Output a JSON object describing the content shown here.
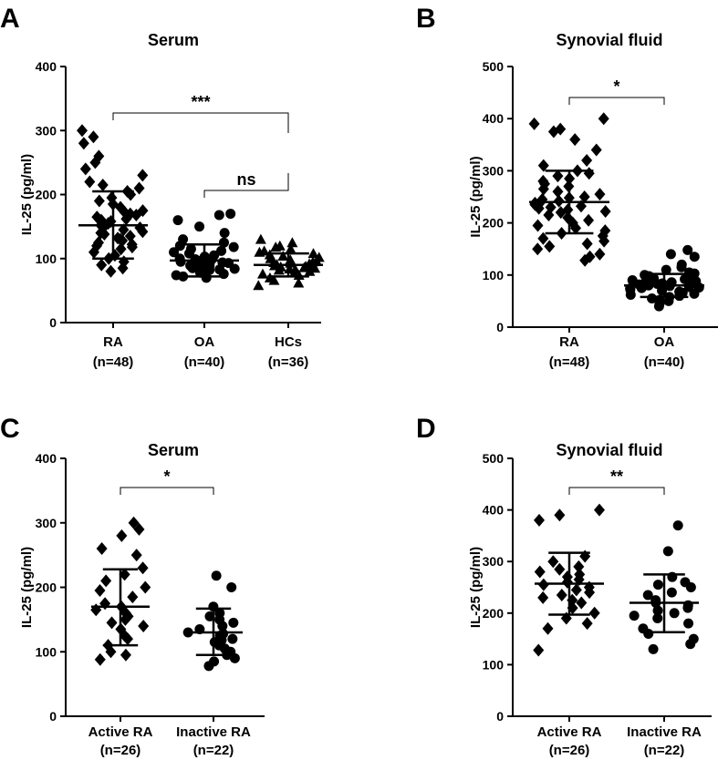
{
  "chart_data": [
    {
      "panel": "A",
      "type": "scatter",
      "title": "Serum",
      "ylabel": "IL-25 (pg/ml)",
      "xlabel": "",
      "ylim": [
        0,
        400
      ],
      "yticks": [
        0,
        100,
        200,
        300,
        400
      ],
      "grid": false,
      "groups": [
        {
          "name": "RA",
          "n": "(n=48)",
          "marker": "diamond",
          "mean": 152,
          "sd_low": 100,
          "sd_high": 205,
          "values": [
            300,
            290,
            280,
            260,
            250,
            240,
            230,
            220,
            215,
            210,
            205,
            200,
            195,
            190,
            185,
            180,
            175,
            172,
            170,
            168,
            165,
            162,
            160,
            158,
            155,
            152,
            150,
            148,
            145,
            142,
            140,
            138,
            135,
            132,
            130,
            128,
            125,
            122,
            120,
            118,
            115,
            110,
            105,
            100,
            95,
            90,
            85,
            80
          ]
        },
        {
          "name": "OA",
          "n": "(n=40)",
          "marker": "circle",
          "mean": 97,
          "sd_low": 72,
          "sd_high": 122,
          "values": [
            170,
            168,
            160,
            150,
            140,
            130,
            125,
            120,
            118,
            115,
            112,
            110,
            108,
            105,
            103,
            100,
            99,
            98,
            97,
            96,
            95,
            94,
            93,
            92,
            91,
            90,
            89,
            88,
            87,
            86,
            85,
            84,
            83,
            82,
            80,
            78,
            76,
            74,
            72,
            70
          ]
        },
        {
          "name": "HCs",
          "n": "(n=36)",
          "marker": "triangle",
          "mean": 90,
          "sd_low": 72,
          "sd_high": 108,
          "values": [
            130,
            125,
            120,
            118,
            115,
            112,
            110,
            108,
            106,
            104,
            102,
            100,
            98,
            96,
            95,
            94,
            93,
            92,
            91,
            90,
            89,
            88,
            87,
            86,
            85,
            84,
            83,
            82,
            80,
            78,
            76,
            74,
            70,
            66,
            62,
            58
          ]
        }
      ],
      "comparisons": [
        {
          "from": "RA",
          "to": "HCs",
          "label": "***"
        },
        {
          "from": "OA",
          "to": "HCs",
          "label": "ns"
        }
      ]
    },
    {
      "panel": "B",
      "type": "scatter",
      "title": "Synovial fluid",
      "ylabel": "IL-25 (pg/ml)",
      "xlabel": "",
      "ylim": [
        0,
        500
      ],
      "yticks": [
        0,
        100,
        200,
        300,
        400,
        500
      ],
      "grid": false,
      "groups": [
        {
          "name": "RA",
          "n": "(n=48)",
          "marker": "diamond",
          "mean": 240,
          "sd_low": 180,
          "sd_high": 300,
          "values": [
            400,
            390,
            380,
            375,
            360,
            340,
            320,
            310,
            300,
            295,
            290,
            285,
            280,
            275,
            270,
            265,
            260,
            255,
            250,
            248,
            245,
            242,
            240,
            238,
            235,
            232,
            230,
            228,
            225,
            222,
            220,
            215,
            210,
            205,
            200,
            195,
            190,
            185,
            180,
            175,
            170,
            165,
            160,
            155,
            150,
            140,
            135,
            128
          ]
        },
        {
          "name": "OA",
          "n": "(n=40)",
          "marker": "circle",
          "mean": 80,
          "sd_low": 58,
          "sd_high": 102,
          "values": [
            148,
            140,
            135,
            120,
            115,
            110,
            105,
            103,
            100,
            98,
            96,
            94,
            92,
            90,
            88,
            86,
            85,
            84,
            83,
            82,
            80,
            79,
            78,
            77,
            76,
            75,
            74,
            72,
            70,
            68,
            66,
            64,
            62,
            60,
            58,
            55,
            52,
            50,
            45,
            40
          ]
        }
      ],
      "comparisons": [
        {
          "from": "RA",
          "to": "OA",
          "label": "*"
        }
      ]
    },
    {
      "panel": "C",
      "type": "scatter",
      "title": "Serum",
      "ylabel": "IL-25 (pg/ml)",
      "xlabel": "",
      "ylim": [
        0,
        400
      ],
      "yticks": [
        0,
        100,
        200,
        300,
        400
      ],
      "grid": false,
      "groups": [
        {
          "name": "Active RA",
          "n": "(n=26)",
          "marker": "diamond",
          "mean": 170,
          "sd_low": 110,
          "sd_high": 228,
          "values": [
            300,
            290,
            280,
            260,
            250,
            230,
            220,
            210,
            200,
            195,
            185,
            175,
            170,
            165,
            160,
            155,
            150,
            145,
            140,
            135,
            125,
            120,
            110,
            100,
            95,
            88
          ]
        },
        {
          "name": "Inactive RA",
          "n": "(n=22)",
          "marker": "circle",
          "mean": 130,
          "sd_low": 95,
          "sd_high": 167,
          "values": [
            218,
            200,
            170,
            160,
            155,
            150,
            145,
            140,
            135,
            130,
            128,
            125,
            120,
            118,
            115,
            110,
            105,
            100,
            95,
            90,
            85,
            78
          ]
        }
      ],
      "comparisons": [
        {
          "from": "Active RA",
          "to": "Inactive RA",
          "label": "*"
        }
      ]
    },
    {
      "panel": "D",
      "type": "scatter",
      "title": "Synovial fluid",
      "ylabel": "IL-25 (pg/ml)",
      "xlabel": "",
      "ylim": [
        0,
        500
      ],
      "yticks": [
        0,
        100,
        200,
        300,
        400,
        500
      ],
      "grid": false,
      "groups": [
        {
          "name": "Active RA",
          "n": "(n=26)",
          "marker": "diamond",
          "mean": 257,
          "sd_low": 197,
          "sd_high": 317,
          "values": [
            400,
            390,
            380,
            310,
            300,
            290,
            285,
            280,
            275,
            270,
            265,
            260,
            255,
            250,
            245,
            240,
            235,
            230,
            225,
            220,
            210,
            200,
            190,
            180,
            170,
            128
          ]
        },
        {
          "name": "Inactive RA",
          "n": "(n=22)",
          "marker": "circle",
          "mean": 220,
          "sd_low": 163,
          "sd_high": 275,
          "values": [
            370,
            320,
            270,
            260,
            255,
            250,
            240,
            235,
            225,
            220,
            215,
            210,
            205,
            200,
            195,
            190,
            180,
            170,
            160,
            150,
            140,
            130
          ]
        }
      ],
      "comparisons": [
        {
          "from": "Active RA",
          "to": "Inactive RA",
          "label": "**"
        }
      ]
    }
  ]
}
